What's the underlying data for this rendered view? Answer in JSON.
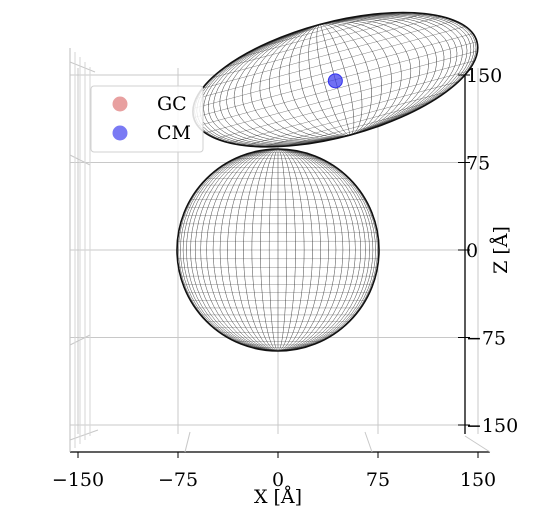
{
  "chart_data": {
    "type": "scatter",
    "projection": "3d",
    "view": "front (X horizontal, Z vertical)",
    "xlabel": "X [Å]",
    "zlabel": "Z [Å]",
    "xlim": [
      -150,
      150
    ],
    "zlim": [
      -150,
      150
    ],
    "x_ticks": [
      "−150",
      "−75",
      "0",
      "75",
      "150"
    ],
    "z_ticks": [
      "150",
      "75",
      "0",
      "−75",
      "−150"
    ],
    "grid": true,
    "legend_position": "upper-left",
    "series": [
      {
        "name": "GC",
        "color": "#e08080",
        "points": []
      },
      {
        "name": "CM",
        "color": "#3333ee",
        "points": [
          {
            "x": 43,
            "z": 145
          }
        ]
      }
    ],
    "surfaces": [
      {
        "shape": "sphere",
        "center": {
          "x": 0,
          "z": 0
        },
        "radius": 86,
        "color": "#000000"
      },
      {
        "shape": "ellipsoid",
        "center": {
          "x": 43,
          "z": 146
        },
        "semi_axis_long": 110,
        "semi_axis_short": 43,
        "tilt_deg": 15,
        "color": "#000000"
      }
    ]
  }
}
